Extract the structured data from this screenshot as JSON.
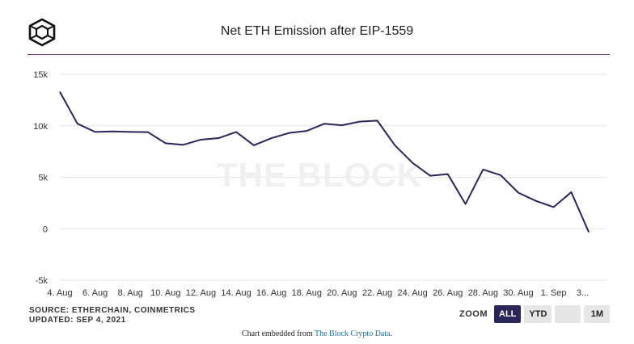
{
  "chart_data": {
    "type": "line",
    "title": "Net ETH Emission after EIP-1559",
    "watermark": "THE BLOCK",
    "x_tick_labels": [
      "4. Aug",
      "6. Aug",
      "8. Aug",
      "10. Aug",
      "12. Aug",
      "14. Aug",
      "16. Aug",
      "18. Aug",
      "20. Aug",
      "22. Aug",
      "24. Aug",
      "26. Aug",
      "28. Aug",
      "30. Aug",
      "1. Sep",
      "3..."
    ],
    "y_tick_labels": [
      "15k",
      "10k",
      "5k",
      "0",
      "-5k"
    ],
    "ylim": [
      -5000,
      15000
    ],
    "xlim": [
      "2021-08-04",
      "2021-09-04"
    ],
    "grid": true,
    "series": [
      {
        "color": "#2b2558",
        "points": [
          {
            "x": "2021-08-04",
            "y": 13300
          },
          {
            "x": "2021-08-05",
            "y": 10200
          },
          {
            "x": "2021-08-06",
            "y": 9400
          },
          {
            "x": "2021-08-07",
            "y": 9450
          },
          {
            "x": "2021-08-08",
            "y": 9400
          },
          {
            "x": "2021-08-09",
            "y": 9380
          },
          {
            "x": "2021-08-10",
            "y": 8300
          },
          {
            "x": "2021-08-11",
            "y": 8150
          },
          {
            "x": "2021-08-12",
            "y": 8650
          },
          {
            "x": "2021-08-13",
            "y": 8800
          },
          {
            "x": "2021-08-14",
            "y": 9400
          },
          {
            "x": "2021-08-15",
            "y": 8100
          },
          {
            "x": "2021-08-16",
            "y": 8800
          },
          {
            "x": "2021-08-17",
            "y": 9300
          },
          {
            "x": "2021-08-18",
            "y": 9500
          },
          {
            "x": "2021-08-19",
            "y": 10200
          },
          {
            "x": "2021-08-20",
            "y": 10050
          },
          {
            "x": "2021-08-21",
            "y": 10400
          },
          {
            "x": "2021-08-22",
            "y": 10500
          },
          {
            "x": "2021-08-23",
            "y": 8100
          },
          {
            "x": "2021-08-24",
            "y": 6400
          },
          {
            "x": "2021-08-25",
            "y": 5150
          },
          {
            "x": "2021-08-26",
            "y": 5300
          },
          {
            "x": "2021-08-27",
            "y": 2400
          },
          {
            "x": "2021-08-28",
            "y": 5750
          },
          {
            "x": "2021-08-29",
            "y": 5200
          },
          {
            "x": "2021-08-30",
            "y": 3500
          },
          {
            "x": "2021-08-31",
            "y": 2700
          },
          {
            "x": "2021-09-01",
            "y": 2100
          },
          {
            "x": "2021-09-02",
            "y": 3550
          },
          {
            "x": "2021-09-03",
            "y": -350
          }
        ]
      }
    ]
  },
  "footer": {
    "source": "SOURCE: ETHERCHAIN, COINMETRICS",
    "updated": "UPDATED: SEP 4, 2021"
  },
  "zoom": {
    "label": "ZOOM",
    "buttons": [
      {
        "id": "all",
        "label": "ALL",
        "active": true
      },
      {
        "id": "ytd",
        "label": "YTD",
        "active": false
      },
      {
        "id": "blank",
        "label": "",
        "active": false
      },
      {
        "id": "1m",
        "label": "1M",
        "active": false
      }
    ]
  },
  "embed_note": {
    "prefix": "Chart embedded from ",
    "link_text": "The Block Crypto Data",
    "suffix": "."
  },
  "colors": {
    "line": "#2b2558",
    "accent_rule": "#7b3f8a",
    "grid": "#e6e6e6",
    "watermark": "#f0f0f0"
  },
  "icons": {
    "logo": "the-block-cube-logo-icon"
  }
}
